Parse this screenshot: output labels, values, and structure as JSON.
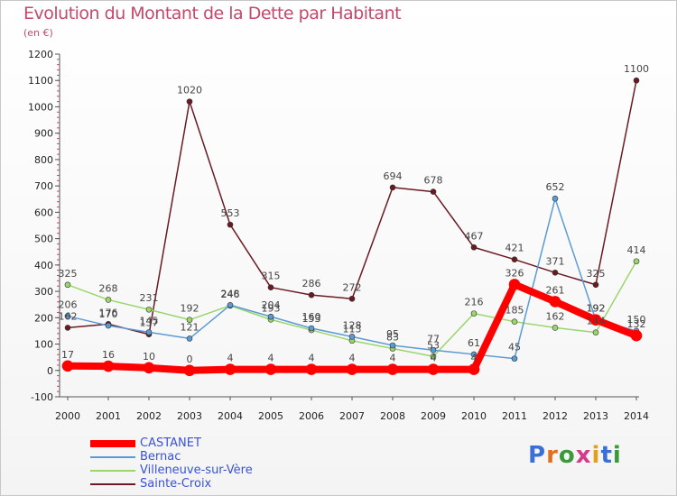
{
  "chart_data": {
    "type": "line",
    "title": "Evolution du Montant de la Dette par Habitant",
    "subtitle": "(en €)",
    "x": [
      "2000",
      "2001",
      "2002",
      "2003",
      "2004",
      "2005",
      "2006",
      "2007",
      "2008",
      "2009",
      "2010",
      "2011",
      "2012",
      "2013",
      "2014"
    ],
    "ylim": [
      -100,
      1200
    ],
    "yticks": [
      -100,
      0,
      100,
      200,
      300,
      400,
      500,
      600,
      700,
      800,
      900,
      1000,
      1100,
      1200
    ],
    "grid": false,
    "legend_position": "bottom-left",
    "series": [
      {
        "name": "Sainte-Croix",
        "color": "#6b1a22",
        "values": [
          162,
          176,
          137,
          1020,
          553,
          315,
          286,
          272,
          694,
          678,
          467,
          421,
          371,
          325,
          1100
        ]
      },
      {
        "name": "Villeneuve-sur-Vère",
        "color": "#9ad66b",
        "values": [
          325,
          268,
          231,
          192,
          246,
          193,
          153,
          113,
          83,
          53,
          216,
          185,
          162,
          144,
          414
        ]
      },
      {
        "name": "Bernac",
        "color": "#5b9bd5",
        "values": [
          206,
          170,
          145,
          121,
          248,
          204,
          160,
          128,
          95,
          77,
          61,
          45,
          652,
          192,
          150
        ]
      },
      {
        "name": "CASTANET",
        "color": "#ff0000",
        "values": [
          17,
          16,
          10,
          0,
          4,
          4,
          4,
          4,
          4,
          4,
          4,
          326,
          261,
          192,
          132
        ]
      }
    ],
    "labels": [
      {
        "series": 0,
        "values": [
          "162",
          "176",
          "137",
          "1020",
          "553",
          "315",
          "286",
          "272",
          "694",
          "678",
          "467",
          "421",
          "371",
          "325",
          "1100"
        ]
      },
      {
        "series": 1,
        "values": [
          "325",
          "268",
          "231",
          "192",
          "246",
          "193",
          "153",
          "113",
          "83",
          "53",
          "216",
          "185",
          "162",
          "144",
          "414"
        ]
      },
      {
        "series": 2,
        "values": [
          "206",
          "170",
          "145",
          "121",
          "248",
          "204",
          "160",
          "128",
          "95",
          "77",
          "61",
          "45",
          "652",
          "192",
          "150"
        ]
      },
      {
        "series": 3,
        "values": [
          "17",
          "16",
          "10",
          "0",
          "4",
          "4",
          "4",
          "4",
          "4",
          "4",
          "4",
          "326",
          "261",
          "192",
          "132"
        ]
      }
    ]
  },
  "legend": [
    {
      "name": "CASTANET",
      "color": "#ff0000",
      "thickness": 8
    },
    {
      "name": "Bernac",
      "color": "#5b9bd5",
      "thickness": 2
    },
    {
      "name": "Villeneuve-sur-Vère",
      "color": "#9ad66b",
      "thickness": 2
    },
    {
      "name": "Sainte-Croix",
      "color": "#6b1a22",
      "thickness": 2
    }
  ],
  "legend_text_color": "#3a52d6",
  "logo": {
    "text": "Proxiti"
  }
}
